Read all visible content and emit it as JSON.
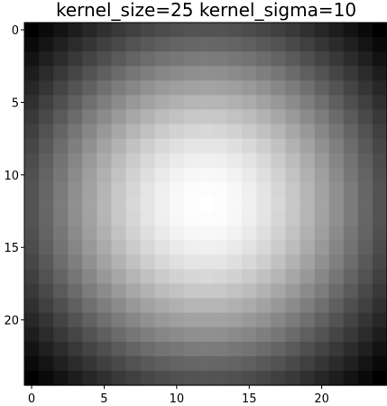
{
  "chart_data": {
    "type": "heatmap",
    "title": "kernel_size=25 kernel_sigma=10",
    "colormap": "gray",
    "kernel_size": 25,
    "kernel_sigma": 10,
    "xlim": [
      -0.5,
      24.5
    ],
    "ylim": [
      24.5,
      -0.5
    ],
    "x_ticks": [
      0,
      5,
      10,
      15,
      20
    ],
    "x_tick_labels": [
      "0",
      "5",
      "10",
      "15",
      "20"
    ],
    "y_ticks": [
      0,
      5,
      10,
      15,
      20
    ],
    "y_tick_labels": [
      "0",
      "5",
      "10",
      "15",
      "20"
    ],
    "xlabel": "",
    "ylabel": "",
    "grid": false
  },
  "colors": {
    "background": "#ffffff",
    "axes_frame": "#000000",
    "text": "#000000"
  }
}
